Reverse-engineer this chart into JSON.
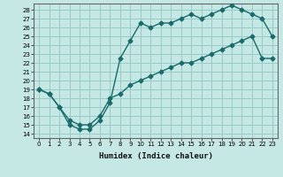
{
  "xlabel": "Humidex (Indice chaleur)",
  "xlim": [
    -0.5,
    23.5
  ],
  "ylim": [
    13.5,
    28.7
  ],
  "xticks": [
    0,
    1,
    2,
    3,
    4,
    5,
    6,
    7,
    8,
    9,
    10,
    11,
    12,
    13,
    14,
    15,
    16,
    17,
    18,
    19,
    20,
    21,
    22,
    23
  ],
  "yticks": [
    14,
    15,
    16,
    17,
    18,
    19,
    20,
    21,
    22,
    23,
    24,
    25,
    26,
    27,
    28
  ],
  "background_color": "#c5e8e5",
  "grid_color": "#98ccc8",
  "line_color": "#1a6b6b",
  "curve1_x": [
    0,
    1,
    2,
    3,
    4,
    5,
    6,
    7,
    8,
    9,
    10,
    11,
    12,
    13,
    14,
    15,
    16,
    17,
    18,
    19,
    20,
    21,
    22,
    23
  ],
  "curve1_y": [
    19.0,
    18.5,
    17.0,
    15.0,
    14.5,
    14.5,
    15.5,
    17.5,
    22.5,
    24.5,
    26.5,
    26.0,
    26.5,
    26.5,
    27.0,
    27.5,
    27.0,
    27.5,
    28.0,
    28.5,
    28.0,
    27.5,
    27.0,
    25.0
  ],
  "curve2_x": [
    0,
    1,
    2,
    3,
    4,
    5,
    6,
    7,
    8,
    9,
    10,
    11,
    12,
    13,
    14,
    15,
    16,
    17,
    18,
    19,
    20,
    21,
    22,
    23
  ],
  "curve2_y": [
    19.0,
    18.5,
    17.0,
    15.5,
    15.0,
    15.0,
    16.0,
    18.0,
    18.5,
    19.5,
    20.0,
    20.5,
    21.0,
    21.5,
    22.0,
    22.0,
    22.5,
    23.0,
    23.5,
    24.0,
    24.5,
    25.0,
    22.5,
    22.5
  ]
}
